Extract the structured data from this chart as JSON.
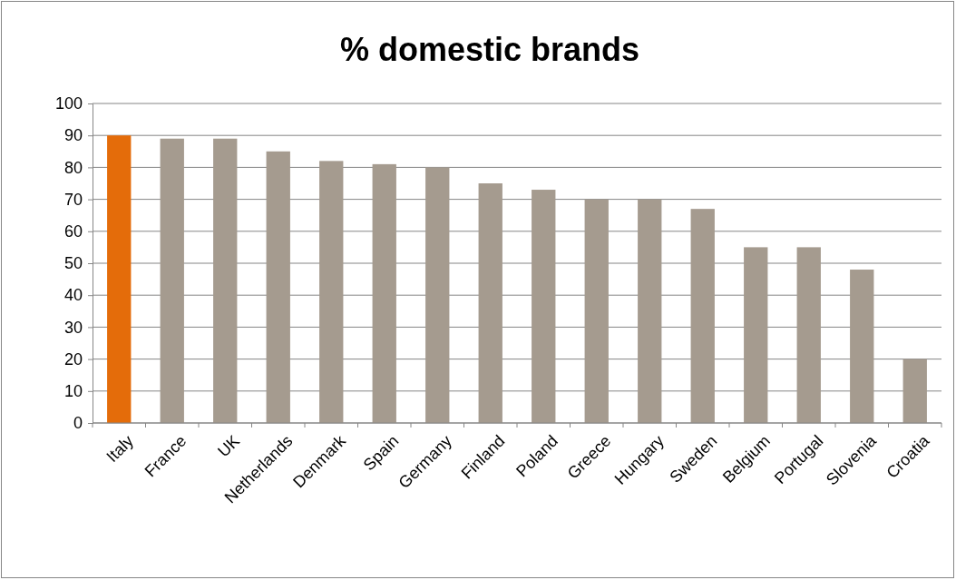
{
  "chart_data": {
    "type": "bar",
    "title": "% domestic brands",
    "categories": [
      "Italy",
      "France",
      "UK",
      "Netherlands",
      "Denmark",
      "Spain",
      "Germany",
      "Finland",
      "Poland",
      "Greece",
      "Hungary",
      "Sweden",
      "Belgium",
      "Portugal",
      "Slovenia",
      "Croatia"
    ],
    "values": [
      90,
      89,
      89,
      85,
      82,
      81,
      80,
      75,
      73,
      70,
      70,
      67,
      55,
      55,
      48,
      20
    ],
    "colors": [
      "#e46c0a",
      "#a59b8f",
      "#a59b8f",
      "#a59b8f",
      "#a59b8f",
      "#a59b8f",
      "#a59b8f",
      "#a59b8f",
      "#a59b8f",
      "#a59b8f",
      "#a59b8f",
      "#a59b8f",
      "#a59b8f",
      "#a59b8f",
      "#a59b8f",
      "#a59b8f"
    ],
    "ylim": [
      0,
      100
    ],
    "yticks": [
      0,
      10,
      20,
      30,
      40,
      50,
      60,
      70,
      80,
      90,
      100
    ],
    "grid": "y"
  }
}
